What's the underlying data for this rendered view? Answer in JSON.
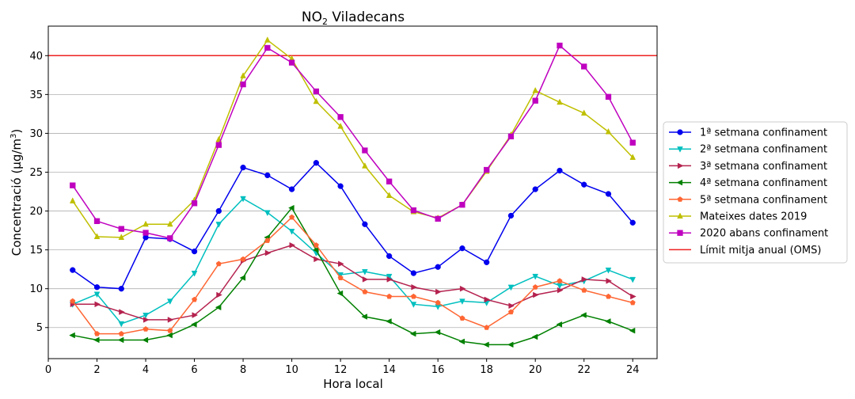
{
  "chart_data": {
    "type": "line",
    "title": "NO",
    "title_sub": "2",
    "title_rest": " Viladecans",
    "xlabel": "Hora local",
    "ylabel": "Concentració (μg/m",
    "ylabel_sup": "3",
    "ylabel_end": ")",
    "xlim": [
      0,
      25
    ],
    "ylim": [
      1,
      43.8
    ],
    "xticks": [
      0,
      2,
      4,
      6,
      8,
      10,
      12,
      14,
      16,
      18,
      20,
      22,
      24
    ],
    "yticks": [
      5,
      10,
      15,
      20,
      25,
      30,
      35,
      40
    ],
    "grid": "horizontal",
    "legend_position": "center-right-outside",
    "x": [
      1,
      2,
      3,
      4,
      5,
      6,
      7,
      8,
      9,
      10,
      11,
      12,
      13,
      14,
      15,
      16,
      17,
      18,
      19,
      20,
      21,
      22,
      23,
      24
    ],
    "series": [
      {
        "name": "1ª setmana confinament",
        "color": "#0000ee",
        "marker": "circle",
        "values": [
          12.4,
          10.2,
          10.0,
          16.6,
          16.4,
          14.8,
          20.0,
          25.6,
          24.6,
          22.8,
          26.2,
          23.2,
          18.3,
          14.2,
          12.0,
          12.8,
          15.2,
          13.4,
          19.4,
          22.8,
          25.2,
          23.4,
          22.2,
          18.5
        ]
      },
      {
        "name": "2ª setmana confinament",
        "color": "#00bfbf",
        "marker": "triangle-down",
        "values": [
          8.0,
          9.3,
          5.5,
          6.6,
          8.4,
          12.0,
          18.3,
          21.6,
          19.8,
          17.4,
          14.6,
          11.8,
          12.2,
          11.6,
          8.0,
          7.7,
          8.4,
          8.2,
          10.2,
          11.6,
          10.4,
          11.0,
          12.4,
          11.2
        ]
      },
      {
        "name": "3ª setmana confinament",
        "color": "#b5224f",
        "marker": "triangle-right",
        "values": [
          8.0,
          8.0,
          7.0,
          6.0,
          6.0,
          6.6,
          9.2,
          13.6,
          14.6,
          15.6,
          13.8,
          13.2,
          11.2,
          11.2,
          10.2,
          9.6,
          10.0,
          8.6,
          7.8,
          9.2,
          9.8,
          11.2,
          11.0,
          9.0
        ]
      },
      {
        "name": "4ª setmana confinament",
        "color": "#008000",
        "marker": "triangle-left",
        "values": [
          4.0,
          3.4,
          3.4,
          3.4,
          4.0,
          5.4,
          7.6,
          11.4,
          16.6,
          20.4,
          15.0,
          9.4,
          6.4,
          5.8,
          4.2,
          4.4,
          3.2,
          2.8,
          2.8,
          3.8,
          5.4,
          6.6,
          5.8,
          4.6
        ]
      },
      {
        "name": "5ª setmana confinament",
        "color": "#ff6633",
        "marker": "pentagon",
        "values": [
          8.4,
          4.2,
          4.2,
          4.8,
          4.6,
          8.6,
          13.2,
          13.8,
          16.2,
          19.2,
          15.6,
          11.4,
          9.6,
          9.0,
          9.0,
          8.2,
          6.2,
          5.0,
          7.0,
          10.2,
          11.0,
          9.8,
          9.0,
          8.2
        ]
      },
      {
        "name": "Mateixes dates 2019",
        "color": "#bfbf00",
        "marker": "triangle-up",
        "values": [
          21.3,
          16.7,
          16.6,
          18.3,
          18.3,
          21.4,
          29.2,
          37.4,
          42.0,
          39.6,
          34.1,
          30.9,
          25.8,
          22.0,
          19.9,
          19.1,
          20.8,
          25.1,
          29.8,
          35.5,
          34.0,
          32.6,
          30.2,
          26.9
        ]
      },
      {
        "name": "2020 abans confinament",
        "color": "#bf00bf",
        "marker": "square",
        "values": [
          23.3,
          18.7,
          17.7,
          17.2,
          16.5,
          21.0,
          28.5,
          36.3,
          41.0,
          39.1,
          35.4,
          32.1,
          27.8,
          23.8,
          20.1,
          19.0,
          20.8,
          25.3,
          29.6,
          34.2,
          41.3,
          38.6,
          34.7,
          28.8
        ]
      }
    ],
    "reference_line": {
      "name": "Límit mitja anual (OMS)",
      "value": 40,
      "color": "#ee2222"
    }
  }
}
